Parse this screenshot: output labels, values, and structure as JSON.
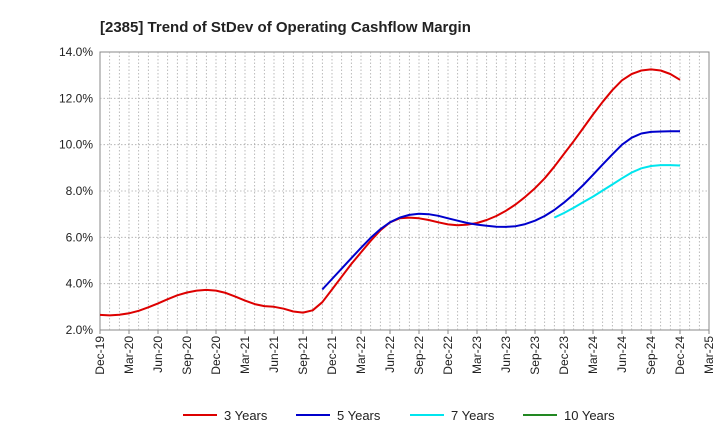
{
  "chart_data": {
    "type": "line",
    "title": "[2385]  Trend of StDev of Operating Cashflow Margin",
    "xlabel": "",
    "ylabel": "",
    "x_tick_labels": [
      "Dec-19",
      "Mar-20",
      "Jun-20",
      "Sep-20",
      "Dec-20",
      "Mar-21",
      "Jun-21",
      "Sep-21",
      "Dec-21",
      "Mar-22",
      "Jun-22",
      "Sep-22",
      "Dec-22",
      "Mar-23",
      "Jun-23",
      "Sep-23",
      "Dec-23",
      "Mar-24",
      "Jun-24",
      "Sep-24",
      "Dec-24",
      "Mar-25"
    ],
    "y_tick_labels": [
      "2.0%",
      "4.0%",
      "6.0%",
      "8.0%",
      "10.0%",
      "12.0%",
      "14.0%"
    ],
    "ylim": [
      2.0,
      14.0
    ],
    "xlim": [
      "Dec-19",
      "Mar-25"
    ],
    "grid": true,
    "legend_position": "bottom",
    "series": [
      {
        "name": "3 Years",
        "color": "#dd0000",
        "x": [
          "Dec-19",
          "Jan-20",
          "Feb-20",
          "Mar-20",
          "Apr-20",
          "May-20",
          "Jun-20",
          "Jul-20",
          "Aug-20",
          "Sep-20",
          "Oct-20",
          "Nov-20",
          "Dec-20",
          "Jan-21",
          "Feb-21",
          "Mar-21",
          "Apr-21",
          "May-21",
          "Jun-21",
          "Jul-21",
          "Aug-21",
          "Sep-21",
          "Oct-21",
          "Nov-21",
          "Dec-21",
          "Jan-22",
          "Feb-22",
          "Mar-22",
          "Apr-22",
          "May-22",
          "Jun-22",
          "Jul-22",
          "Aug-22",
          "Sep-22",
          "Oct-22",
          "Nov-22",
          "Dec-22",
          "Jan-23",
          "Feb-23",
          "Mar-23",
          "Apr-23",
          "May-23",
          "Jun-23",
          "Jul-23",
          "Aug-23",
          "Sep-23",
          "Oct-23",
          "Nov-23",
          "Dec-23",
          "Jan-24",
          "Feb-24",
          "Mar-24",
          "Apr-24",
          "May-24",
          "Jun-24",
          "Jul-24",
          "Aug-24",
          "Sep-24",
          "Oct-24",
          "Nov-24",
          "Dec-24"
        ],
        "values": [
          2.65,
          2.63,
          2.66,
          2.72,
          2.83,
          2.98,
          3.15,
          3.33,
          3.5,
          3.62,
          3.7,
          3.73,
          3.7,
          3.6,
          3.44,
          3.27,
          3.12,
          3.03,
          3.0,
          2.92,
          2.8,
          2.75,
          2.85,
          3.2,
          3.75,
          4.3,
          4.85,
          5.35,
          5.85,
          6.3,
          6.65,
          6.82,
          6.85,
          6.82,
          6.75,
          6.65,
          6.56,
          6.52,
          6.55,
          6.62,
          6.75,
          6.92,
          7.15,
          7.42,
          7.75,
          8.12,
          8.55,
          9.05,
          9.6,
          10.15,
          10.72,
          11.3,
          11.85,
          12.35,
          12.78,
          13.05,
          13.2,
          13.25,
          13.2,
          13.05,
          12.8
        ]
      },
      {
        "name": "5 Years",
        "color": "#0000cc",
        "x": [
          "Nov-21",
          "Dec-21",
          "Jan-22",
          "Feb-22",
          "Mar-22",
          "Apr-22",
          "May-22",
          "Jun-22",
          "Jul-22",
          "Aug-22",
          "Sep-22",
          "Oct-22",
          "Nov-22",
          "Dec-22",
          "Jan-23",
          "Feb-23",
          "Mar-23",
          "Apr-23",
          "May-23",
          "Jun-23",
          "Jul-23",
          "Aug-23",
          "Sep-23",
          "Oct-23",
          "Nov-23",
          "Dec-23",
          "Jan-24",
          "Feb-24",
          "Mar-24",
          "Apr-24",
          "May-24",
          "Jun-24",
          "Jul-24",
          "Aug-24",
          "Sep-24",
          "Oct-24",
          "Nov-24",
          "Dec-24"
        ],
        "values": [
          3.75,
          4.2,
          4.65,
          5.1,
          5.55,
          5.98,
          6.35,
          6.65,
          6.85,
          6.97,
          7.02,
          7.0,
          6.93,
          6.82,
          6.72,
          6.62,
          6.55,
          6.5,
          6.46,
          6.45,
          6.48,
          6.57,
          6.72,
          6.92,
          7.18,
          7.5,
          7.86,
          8.26,
          8.7,
          9.15,
          9.58,
          10.0,
          10.3,
          10.48,
          10.55,
          10.57,
          10.58,
          10.58
        ]
      },
      {
        "name": "7 Years",
        "color": "#00e5ee",
        "x": [
          "Nov-23",
          "Dec-23",
          "Jan-24",
          "Feb-24",
          "Mar-24",
          "Apr-24",
          "May-24",
          "Jun-24",
          "Jul-24",
          "Aug-24",
          "Sep-24",
          "Oct-24",
          "Nov-24",
          "Dec-24"
        ],
        "values": [
          6.85,
          7.05,
          7.28,
          7.52,
          7.76,
          8.02,
          8.28,
          8.55,
          8.8,
          8.98,
          9.08,
          9.12,
          9.12,
          9.1
        ]
      },
      {
        "name": "10 Years",
        "color": "#228822",
        "x": [],
        "values": []
      }
    ]
  }
}
